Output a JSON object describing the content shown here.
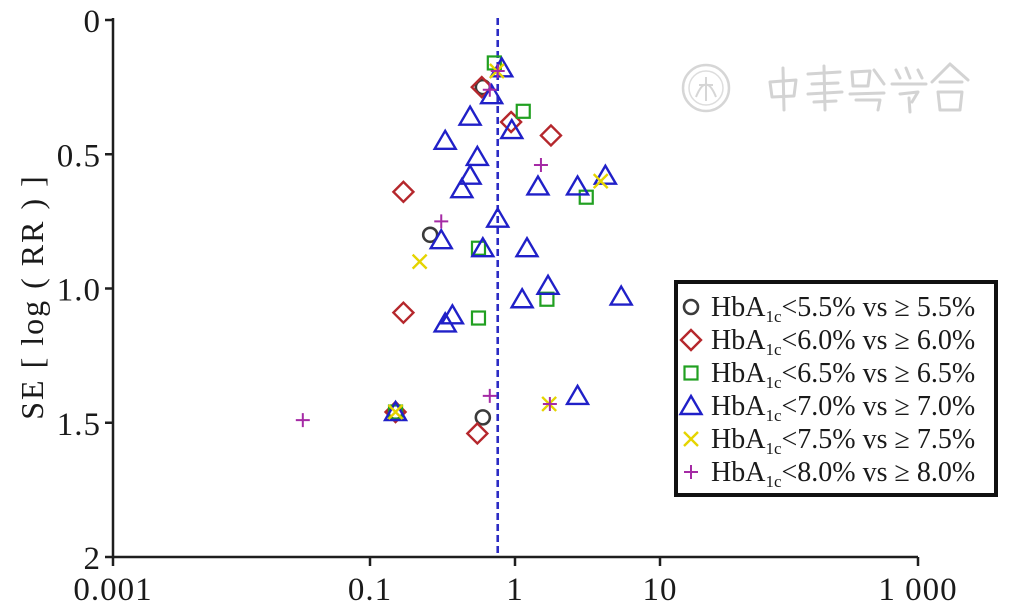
{
  "watermark": {
    "text": "中華醫學會"
  },
  "chart_data": {
    "type": "scatter",
    "ylabel": "SE [ log ( RR ) ]",
    "x_scale": "log",
    "xlim": [
      0.001,
      1000
    ],
    "x_ticks": [
      0.001,
      0.1,
      1,
      10,
      1000
    ],
    "x_tick_labels": [
      "0.001",
      "0.1",
      "1",
      "10",
      "1 000"
    ],
    "ylim": [
      0,
      2
    ],
    "y_inverted": true,
    "y_ticks": [
      0,
      0.5,
      1,
      1.5,
      2
    ],
    "y_tick_labels": [
      "0",
      "0.5",
      "1.0",
      "1.5",
      "2"
    ],
    "grid": false,
    "legend_position": "bottom-right",
    "reference_line": {
      "x": 0.76,
      "dashed": true,
      "color": "#2b2bc4"
    },
    "series": [
      {
        "name": "HbA1c<5.5% vs ≥ 5.5%",
        "marker": "circle",
        "color": "#3b3b3b",
        "points": [
          [
            0.6,
            0.25
          ],
          [
            0.26,
            0.8
          ],
          [
            0.15,
            1.46
          ],
          [
            0.6,
            1.48
          ]
        ]
      },
      {
        "name": "HbA1c<6.0% vs ≥ 6.0%",
        "marker": "diamond",
        "color": "#b5272c",
        "points": [
          [
            0.59,
            0.25
          ],
          [
            0.94,
            0.38
          ],
          [
            1.77,
            0.43
          ],
          [
            0.17,
            0.64
          ],
          [
            0.17,
            1.09
          ],
          [
            0.15,
            1.46
          ],
          [
            0.55,
            1.54
          ]
        ]
      },
      {
        "name": "HbA1c<6.5% vs ≥ 6.5%",
        "marker": "square",
        "color": "#21a021",
        "points": [
          [
            0.72,
            0.16
          ],
          [
            1.14,
            0.34
          ],
          [
            3.1,
            0.66
          ],
          [
            0.56,
            0.85
          ],
          [
            1.66,
            1.04
          ],
          [
            0.56,
            1.11
          ],
          [
            0.15,
            1.46
          ]
        ]
      },
      {
        "name": "HbA1c<7.0% vs ≥ 7.0%",
        "marker": "triangle",
        "color": "#2020c8",
        "points": [
          [
            0.81,
            0.18
          ],
          [
            0.69,
            0.28
          ],
          [
            0.49,
            0.36
          ],
          [
            0.95,
            0.41
          ],
          [
            0.33,
            0.45
          ],
          [
            0.55,
            0.51
          ],
          [
            0.49,
            0.58
          ],
          [
            4.2,
            0.58
          ],
          [
            1.44,
            0.62
          ],
          [
            2.7,
            0.62
          ],
          [
            0.43,
            0.63
          ],
          [
            0.76,
            0.74
          ],
          [
            0.31,
            0.82
          ],
          [
            0.6,
            0.85
          ],
          [
            1.21,
            0.85
          ],
          [
            1.69,
            0.99
          ],
          [
            5.4,
            1.03
          ],
          [
            1.12,
            1.04
          ],
          [
            0.37,
            1.1
          ],
          [
            0.33,
            1.13
          ],
          [
            2.7,
            1.4
          ],
          [
            0.15,
            1.46
          ]
        ]
      },
      {
        "name": "HbA1c<7.5% vs ≥ 7.5%",
        "marker": "x",
        "color": "#e5d400",
        "points": [
          [
            0.75,
            0.19
          ],
          [
            3.9,
            0.6
          ],
          [
            0.22,
            0.9
          ],
          [
            1.72,
            1.43
          ],
          [
            0.15,
            1.46
          ]
        ]
      },
      {
        "name": "HbA1c<8.0% vs ≥ 8.0%",
        "marker": "plus",
        "color": "#a52aa5",
        "points": [
          [
            0.76,
            0.19
          ],
          [
            0.67,
            0.26
          ],
          [
            1.51,
            0.54
          ],
          [
            0.31,
            0.75
          ],
          [
            0.67,
            1.4
          ],
          [
            1.74,
            1.43
          ],
          [
            0.03,
            1.49
          ]
        ]
      }
    ]
  }
}
